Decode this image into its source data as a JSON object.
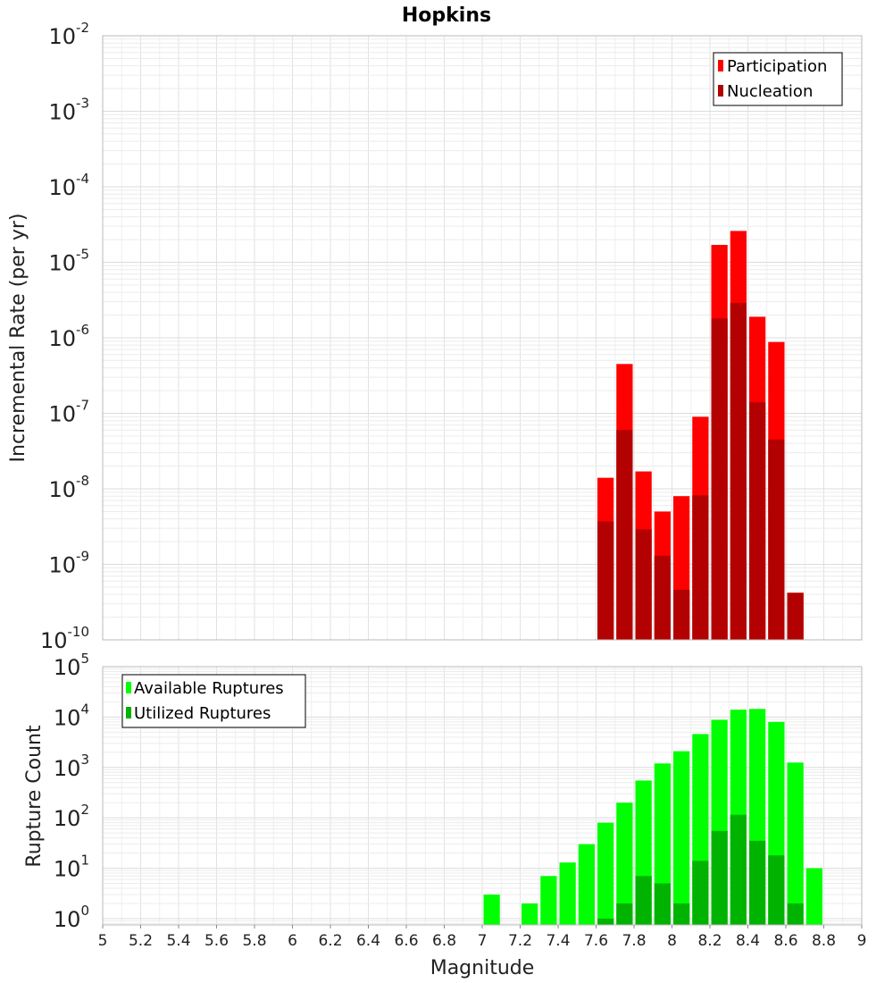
{
  "chart_data": [
    {
      "type": "bar",
      "title": "Hopkins",
      "xlabel": "",
      "ylabel": "Incremental Rate (per yr)",
      "yscale": "log",
      "xlim": [
        5,
        9
      ],
      "ylim": [
        1e-10,
        0.01
      ],
      "yticks": [
        {
          "base": "10",
          "exp": "-10"
        },
        {
          "base": "10",
          "exp": "-9"
        },
        {
          "base": "10",
          "exp": "-8"
        },
        {
          "base": "10",
          "exp": "-7"
        },
        {
          "base": "10",
          "exp": "-6"
        },
        {
          "base": "10",
          "exp": "-5"
        },
        {
          "base": "10",
          "exp": "-4"
        },
        {
          "base": "10",
          "exp": "-3"
        },
        {
          "base": "10",
          "exp": "-2"
        }
      ],
      "grid": true,
      "legend_position": "top-right",
      "bar_width": 0.1,
      "series": [
        {
          "name": "Participation",
          "color": "#ff0000",
          "x": [
            7.65,
            7.75,
            7.85,
            7.95,
            8.05,
            8.15,
            8.25,
            8.35,
            8.45,
            8.55,
            8.65
          ],
          "values": [
            1.4e-08,
            4.5e-07,
            1.7e-08,
            5e-09,
            8e-09,
            9e-08,
            1.7e-05,
            2.6e-05,
            1.9e-06,
            8.8e-07,
            4.2e-10
          ]
        },
        {
          "name": "Nucleation",
          "color": "#b30000",
          "x": [
            7.65,
            7.75,
            7.85,
            7.95,
            8.05,
            8.15,
            8.25,
            8.35,
            8.45,
            8.55,
            8.65
          ],
          "values": [
            3.7e-09,
            6e-08,
            2.9e-09,
            1.3e-09,
            4.6e-10,
            8.2e-09,
            1.8e-06,
            2.9e-06,
            1.4e-07,
            4.5e-08,
            4.2e-10
          ]
        }
      ]
    },
    {
      "type": "bar",
      "title": "",
      "xlabel": "Magnitude",
      "ylabel": "Rupture Count",
      "yscale": "log",
      "xlim": [
        5,
        9
      ],
      "ylim": [
        0.75,
        100000
      ],
      "xticks": [
        "5",
        "5.2",
        "5.4",
        "5.6",
        "5.8",
        "6",
        "6.2",
        "6.4",
        "6.6",
        "6.8",
        "7",
        "7.2",
        "7.4",
        "7.6",
        "7.8",
        "8",
        "8.2",
        "8.4",
        "8.6",
        "8.8",
        "9"
      ],
      "yticks": [
        {
          "base": "10",
          "exp": "0"
        },
        {
          "base": "10",
          "exp": "1"
        },
        {
          "base": "10",
          "exp": "2"
        },
        {
          "base": "10",
          "exp": "3"
        },
        {
          "base": "10",
          "exp": "4"
        },
        {
          "base": "10",
          "exp": "5"
        }
      ],
      "grid": true,
      "legend_position": "top-left",
      "bar_width": 0.1,
      "series": [
        {
          "name": "Available Ruptures",
          "color": "#00ff00",
          "x": [
            7.05,
            7.25,
            7.35,
            7.45,
            7.55,
            7.65,
            7.75,
            7.85,
            7.95,
            8.05,
            8.15,
            8.25,
            8.35,
            8.45,
            8.55,
            8.65,
            8.75
          ],
          "values": [
            3,
            2,
            7,
            13,
            30,
            80,
            200,
            550,
            1200,
            2100,
            4600,
            8800,
            14000,
            14500,
            8000,
            1250,
            10
          ]
        },
        {
          "name": "Utilized Ruptures",
          "color": "#00b300",
          "x": [
            7.65,
            7.75,
            7.85,
            7.95,
            8.05,
            8.15,
            8.25,
            8.35,
            8.45,
            8.55,
            8.65
          ],
          "values": [
            1,
            2,
            7,
            5,
            2,
            14,
            55,
            115,
            35,
            18,
            2
          ]
        }
      ]
    }
  ]
}
